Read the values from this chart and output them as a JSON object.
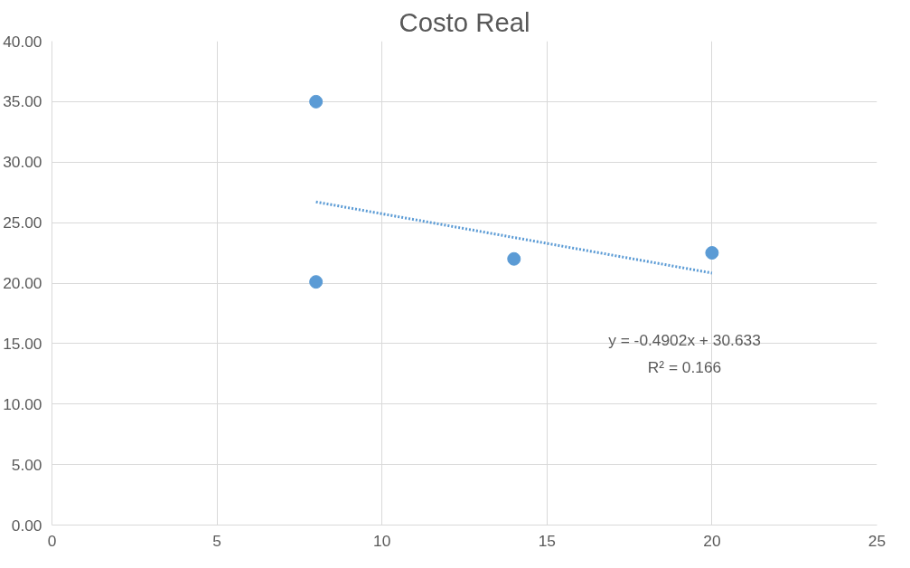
{
  "chart_data": {
    "type": "scatter",
    "title": "Costo Real",
    "series": [
      {
        "color": "#5b9bd5",
        "x": [
          8,
          8,
          14,
          20
        ],
        "values": [
          35.0,
          20.1,
          22.0,
          22.5
        ],
        "marker": "circle"
      },
      {
        "type": "line",
        "color": "#5b9bd5",
        "x": [
          8,
          20
        ],
        "values": [
          26.71,
          20.83
        ],
        "line_style": "dotted"
      }
    ],
    "xlim": [
      0,
      25
    ],
    "xticks": [
      0,
      5,
      10,
      15,
      20,
      25
    ],
    "ylim": [
      0,
      40
    ],
    "yticks": [
      {
        "value": 0,
        "label": "0.00"
      },
      {
        "value": 5,
        "label": "5.00"
      },
      {
        "value": 10,
        "label": "10.00"
      },
      {
        "value": 15,
        "label": "15.00"
      },
      {
        "value": 20,
        "label": "20.00"
      },
      {
        "value": 25,
        "label": "25.00"
      },
      {
        "value": 30,
        "label": "30.00"
      },
      {
        "value": 35,
        "label": "35.00"
      },
      {
        "value": 40,
        "label": "40.00"
      }
    ],
    "grid": true,
    "annotations": [
      "y = -0.4902x + 30.633",
      "R² = 0.166"
    ]
  }
}
